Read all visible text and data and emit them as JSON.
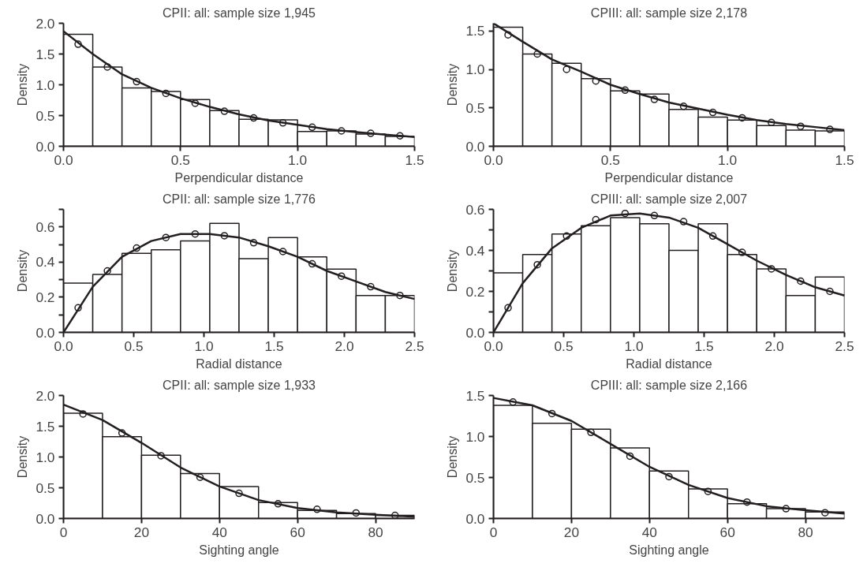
{
  "chart_data": [
    {
      "type": "histogram",
      "title": "CPII: all: sample size 1,945",
      "xlabel": "Perpendicular distance",
      "ylabel": "Density",
      "color": "#ffffff",
      "bins": [
        0,
        0.125,
        0.25,
        0.375,
        0.5,
        0.625,
        0.75,
        0.875,
        1.0,
        1.125,
        1.25,
        1.375,
        1.5
      ],
      "values": [
        1.82,
        1.29,
        0.95,
        0.89,
        0.76,
        0.58,
        0.44,
        0.43,
        0.24,
        0.25,
        0.2,
        0.16
      ],
      "series": [
        {
          "type": "line",
          "color": "#231f20",
          "x": [
            0,
            0.125,
            0.25,
            0.375,
            0.5,
            0.625,
            0.75,
            0.875,
            1.0,
            1.125,
            1.25,
            1.375,
            1.5
          ],
          "values": [
            1.87,
            1.5,
            1.17,
            0.95,
            0.78,
            0.64,
            0.52,
            0.42,
            0.35,
            0.28,
            0.23,
            0.19,
            0.15
          ]
        },
        {
          "type": "scatter",
          "marker": "circle",
          "color": "#231f20",
          "x": [
            0.0625,
            0.1875,
            0.3125,
            0.4375,
            0.5625,
            0.6875,
            0.8125,
            0.9375,
            1.0625,
            1.1875,
            1.3125,
            1.4375
          ],
          "values": [
            1.66,
            1.29,
            1.05,
            0.86,
            0.7,
            0.57,
            0.46,
            0.38,
            0.31,
            0.25,
            0.21,
            0.17
          ]
        }
      ],
      "xlim": [
        0,
        1.5
      ],
      "xticks": [
        {
          "value": 0,
          "label": "0.0"
        },
        0.5,
        {
          "value": 1,
          "label": "1.0"
        },
        1.5
      ],
      "ylim": [
        0,
        2
      ],
      "yticks": [
        {
          "value": 0,
          "label": "0.0"
        },
        0.5,
        {
          "value": 1,
          "label": "1.0"
        },
        1.5,
        {
          "value": 2,
          "label": "2.0"
        }
      ]
    },
    {
      "type": "histogram",
      "title": "CPIII: all: sample size 2,178",
      "xlabel": "Perpendicular distance",
      "ylabel": "Density",
      "color": "#ffffff",
      "bins": [
        0,
        0.125,
        0.25,
        0.375,
        0.5,
        0.625,
        0.75,
        0.875,
        1.0,
        1.125,
        1.25,
        1.375,
        1.5
      ],
      "values": [
        1.55,
        1.2,
        1.08,
        0.88,
        0.72,
        0.68,
        0.48,
        0.38,
        0.34,
        0.27,
        0.21,
        0.2
      ],
      "series": [
        {
          "type": "line",
          "color": "#231f20",
          "x": [
            0,
            0.125,
            0.25,
            0.375,
            0.5,
            0.625,
            0.75,
            0.875,
            1.0,
            1.125,
            1.25,
            1.375,
            1.5
          ],
          "values": [
            1.6,
            1.36,
            1.13,
            0.97,
            0.8,
            0.68,
            0.57,
            0.49,
            0.41,
            0.34,
            0.29,
            0.25,
            0.21
          ]
        },
        {
          "type": "scatter",
          "marker": "circle",
          "color": "#231f20",
          "x": [
            0.0625,
            0.1875,
            0.3125,
            0.4375,
            0.5625,
            0.6875,
            0.8125,
            0.9375,
            1.0625,
            1.1875,
            1.3125,
            1.4375
          ],
          "values": [
            1.45,
            1.2,
            1.0,
            0.85,
            0.73,
            0.61,
            0.52,
            0.44,
            0.37,
            0.31,
            0.26,
            0.22
          ]
        }
      ],
      "xlim": [
        0,
        1.5
      ],
      "xticks": [
        {
          "value": 0,
          "label": "0.0"
        },
        0.5,
        {
          "value": 1,
          "label": "1.0"
        },
        1.5
      ],
      "ylim": [
        0,
        1.6
      ],
      "yticks": [
        {
          "value": 0,
          "label": "0.0"
        },
        0.5,
        {
          "value": 1,
          "label": "1.0"
        },
        1.5
      ]
    },
    {
      "type": "histogram",
      "title": "CPII: all: sample size 1,776",
      "xlabel": "Radial distance",
      "ylabel": "Density",
      "color": "#ffffff",
      "bins": [
        0,
        0.2083,
        0.4167,
        0.625,
        0.8333,
        1.0417,
        1.25,
        1.4583,
        1.6667,
        1.875,
        2.0833,
        2.2917,
        2.5
      ],
      "values": [
        0.28,
        0.33,
        0.45,
        0.47,
        0.52,
        0.62,
        0.42,
        0.54,
        0.43,
        0.36,
        0.21,
        0.21
      ],
      "series": [
        {
          "type": "line",
          "color": "#231f20",
          "x": [
            0,
            0.2083,
            0.4167,
            0.625,
            0.8333,
            1.0417,
            1.25,
            1.4583,
            1.6667,
            1.875,
            2.0833,
            2.2917,
            2.5
          ],
          "values": [
            0,
            0.26,
            0.43,
            0.52,
            0.56,
            0.56,
            0.54,
            0.49,
            0.43,
            0.35,
            0.29,
            0.23,
            0.19
          ]
        },
        {
          "type": "scatter",
          "marker": "circle",
          "color": "#231f20",
          "x": [
            0.1042,
            0.3125,
            0.5208,
            0.7292,
            0.9375,
            1.1458,
            1.3542,
            1.5625,
            1.7708,
            1.9792,
            2.1875,
            2.3958
          ],
          "values": [
            0.14,
            0.35,
            0.48,
            0.54,
            0.56,
            0.55,
            0.51,
            0.46,
            0.39,
            0.32,
            0.26,
            0.21
          ]
        }
      ],
      "xlim": [
        0,
        2.5
      ],
      "xticks": [
        {
          "value": 0,
          "label": "0.0"
        },
        0.5,
        {
          "value": 1,
          "label": "1.0"
        },
        1.5,
        {
          "value": 2,
          "label": "2.0"
        },
        2.5
      ],
      "ylim": [
        0,
        0.7
      ],
      "yticks": [
        {
          "value": 0,
          "label": "0.0"
        },
        {
          "value": 0.1,
          "label": null
        },
        0.2,
        {
          "value": 0.3,
          "label": null
        },
        0.4,
        {
          "value": 0.5,
          "label": null
        },
        0.6,
        {
          "value": 0.7,
          "label": null
        }
      ]
    },
    {
      "type": "histogram",
      "title": "CPIII: all: sample size 2,007",
      "xlabel": "Radial distance",
      "ylabel": "Density",
      "color": "#ffffff",
      "bins": [
        0,
        0.2083,
        0.4167,
        0.625,
        0.8333,
        1.0417,
        1.25,
        1.4583,
        1.6667,
        1.875,
        2.0833,
        2.2917,
        2.5
      ],
      "values": [
        0.29,
        0.38,
        0.48,
        0.52,
        0.56,
        0.53,
        0.4,
        0.53,
        0.38,
        0.31,
        0.18,
        0.27
      ],
      "series": [
        {
          "type": "line",
          "color": "#231f20",
          "x": [
            0,
            0.2083,
            0.4167,
            0.625,
            0.8333,
            1.0417,
            1.25,
            1.4583,
            1.6667,
            1.875,
            2.0833,
            2.2917,
            2.5
          ],
          "values": [
            0,
            0.24,
            0.41,
            0.51,
            0.57,
            0.58,
            0.56,
            0.51,
            0.43,
            0.35,
            0.28,
            0.22,
            0.18
          ]
        },
        {
          "type": "scatter",
          "marker": "circle",
          "color": "#231f20",
          "x": [
            0.1042,
            0.3125,
            0.5208,
            0.7292,
            0.9375,
            1.1458,
            1.3542,
            1.5625,
            1.7708,
            1.9792,
            2.1875,
            2.3958
          ],
          "values": [
            0.12,
            0.33,
            0.47,
            0.55,
            0.58,
            0.57,
            0.54,
            0.47,
            0.39,
            0.31,
            0.25,
            0.2
          ]
        }
      ],
      "xlim": [
        0,
        2.5
      ],
      "xticks": [
        {
          "value": 0,
          "label": "0.0"
        },
        0.5,
        {
          "value": 1,
          "label": "1.0"
        },
        1.5,
        {
          "value": 2,
          "label": "2.0"
        },
        2.5
      ],
      "ylim": [
        0,
        0.6
      ],
      "yticks": [
        {
          "value": 0,
          "label": "0.0"
        },
        {
          "value": 0.1,
          "label": null
        },
        0.2,
        {
          "value": 0.3,
          "label": null
        },
        0.4,
        {
          "value": 0.5,
          "label": null
        },
        0.6
      ]
    },
    {
      "type": "histogram",
      "title": "CPII: all: sample size 1,933",
      "xlabel": "Sighting angle",
      "ylabel": "Density",
      "color": "#ffffff",
      "bins": [
        0,
        10,
        20,
        30,
        40,
        50,
        60,
        70,
        80,
        90
      ],
      "values": [
        1.71,
        1.33,
        1.03,
        0.73,
        0.52,
        0.26,
        0.13,
        0.08,
        0.05
      ],
      "series": [
        {
          "type": "line",
          "color": "#231f20",
          "x": [
            0,
            10,
            20,
            30,
            40,
            50,
            60,
            70,
            80,
            90
          ],
          "values": [
            1.85,
            1.6,
            1.23,
            0.83,
            0.52,
            0.3,
            0.17,
            0.1,
            0.06,
            0.03
          ]
        },
        {
          "type": "scatter",
          "marker": "circle",
          "color": "#231f20",
          "x": [
            5,
            15,
            25,
            35,
            45,
            55,
            65,
            75,
            85
          ],
          "values": [
            1.7,
            1.39,
            1.02,
            0.67,
            0.41,
            0.24,
            0.15,
            0.09,
            0.05
          ]
        }
      ],
      "xlim": [
        0,
        90
      ],
      "xticks": [
        0,
        20,
        40,
        60,
        80
      ],
      "ylim": [
        0,
        2
      ],
      "yticks": [
        {
          "value": 0,
          "label": "0.0"
        },
        0.5,
        {
          "value": 1,
          "label": "1.0"
        },
        1.5,
        {
          "value": 2,
          "label": "2.0"
        }
      ]
    },
    {
      "type": "histogram",
      "title": "CPIII: all: sample size 2,166",
      "xlabel": "Sighting angle",
      "ylabel": "Density",
      "color": "#ffffff",
      "bins": [
        0,
        10,
        20,
        30,
        40,
        50,
        60,
        70,
        80,
        90
      ],
      "values": [
        1.38,
        1.16,
        1.09,
        0.86,
        0.58,
        0.36,
        0.18,
        0.12,
        0.08
      ],
      "series": [
        {
          "type": "line",
          "color": "#231f20",
          "x": [
            0,
            10,
            20,
            30,
            40,
            50,
            60,
            70,
            80,
            90
          ],
          "values": [
            1.47,
            1.38,
            1.19,
            0.91,
            0.63,
            0.41,
            0.25,
            0.15,
            0.1,
            0.06
          ]
        },
        {
          "type": "scatter",
          "marker": "circle",
          "color": "#231f20",
          "x": [
            5,
            15,
            25,
            35,
            45,
            55,
            65,
            75,
            85
          ],
          "values": [
            1.42,
            1.28,
            1.05,
            0.76,
            0.51,
            0.33,
            0.2,
            0.12,
            0.07
          ]
        }
      ],
      "xlim": [
        0,
        90
      ],
      "xticks": [
        0,
        20,
        40,
        60,
        80
      ],
      "ylim": [
        0,
        1.5
      ],
      "yticks": [
        {
          "value": 0,
          "label": "0.0"
        },
        0.5,
        {
          "value": 1,
          "label": "1.0"
        },
        1.5
      ]
    }
  ]
}
